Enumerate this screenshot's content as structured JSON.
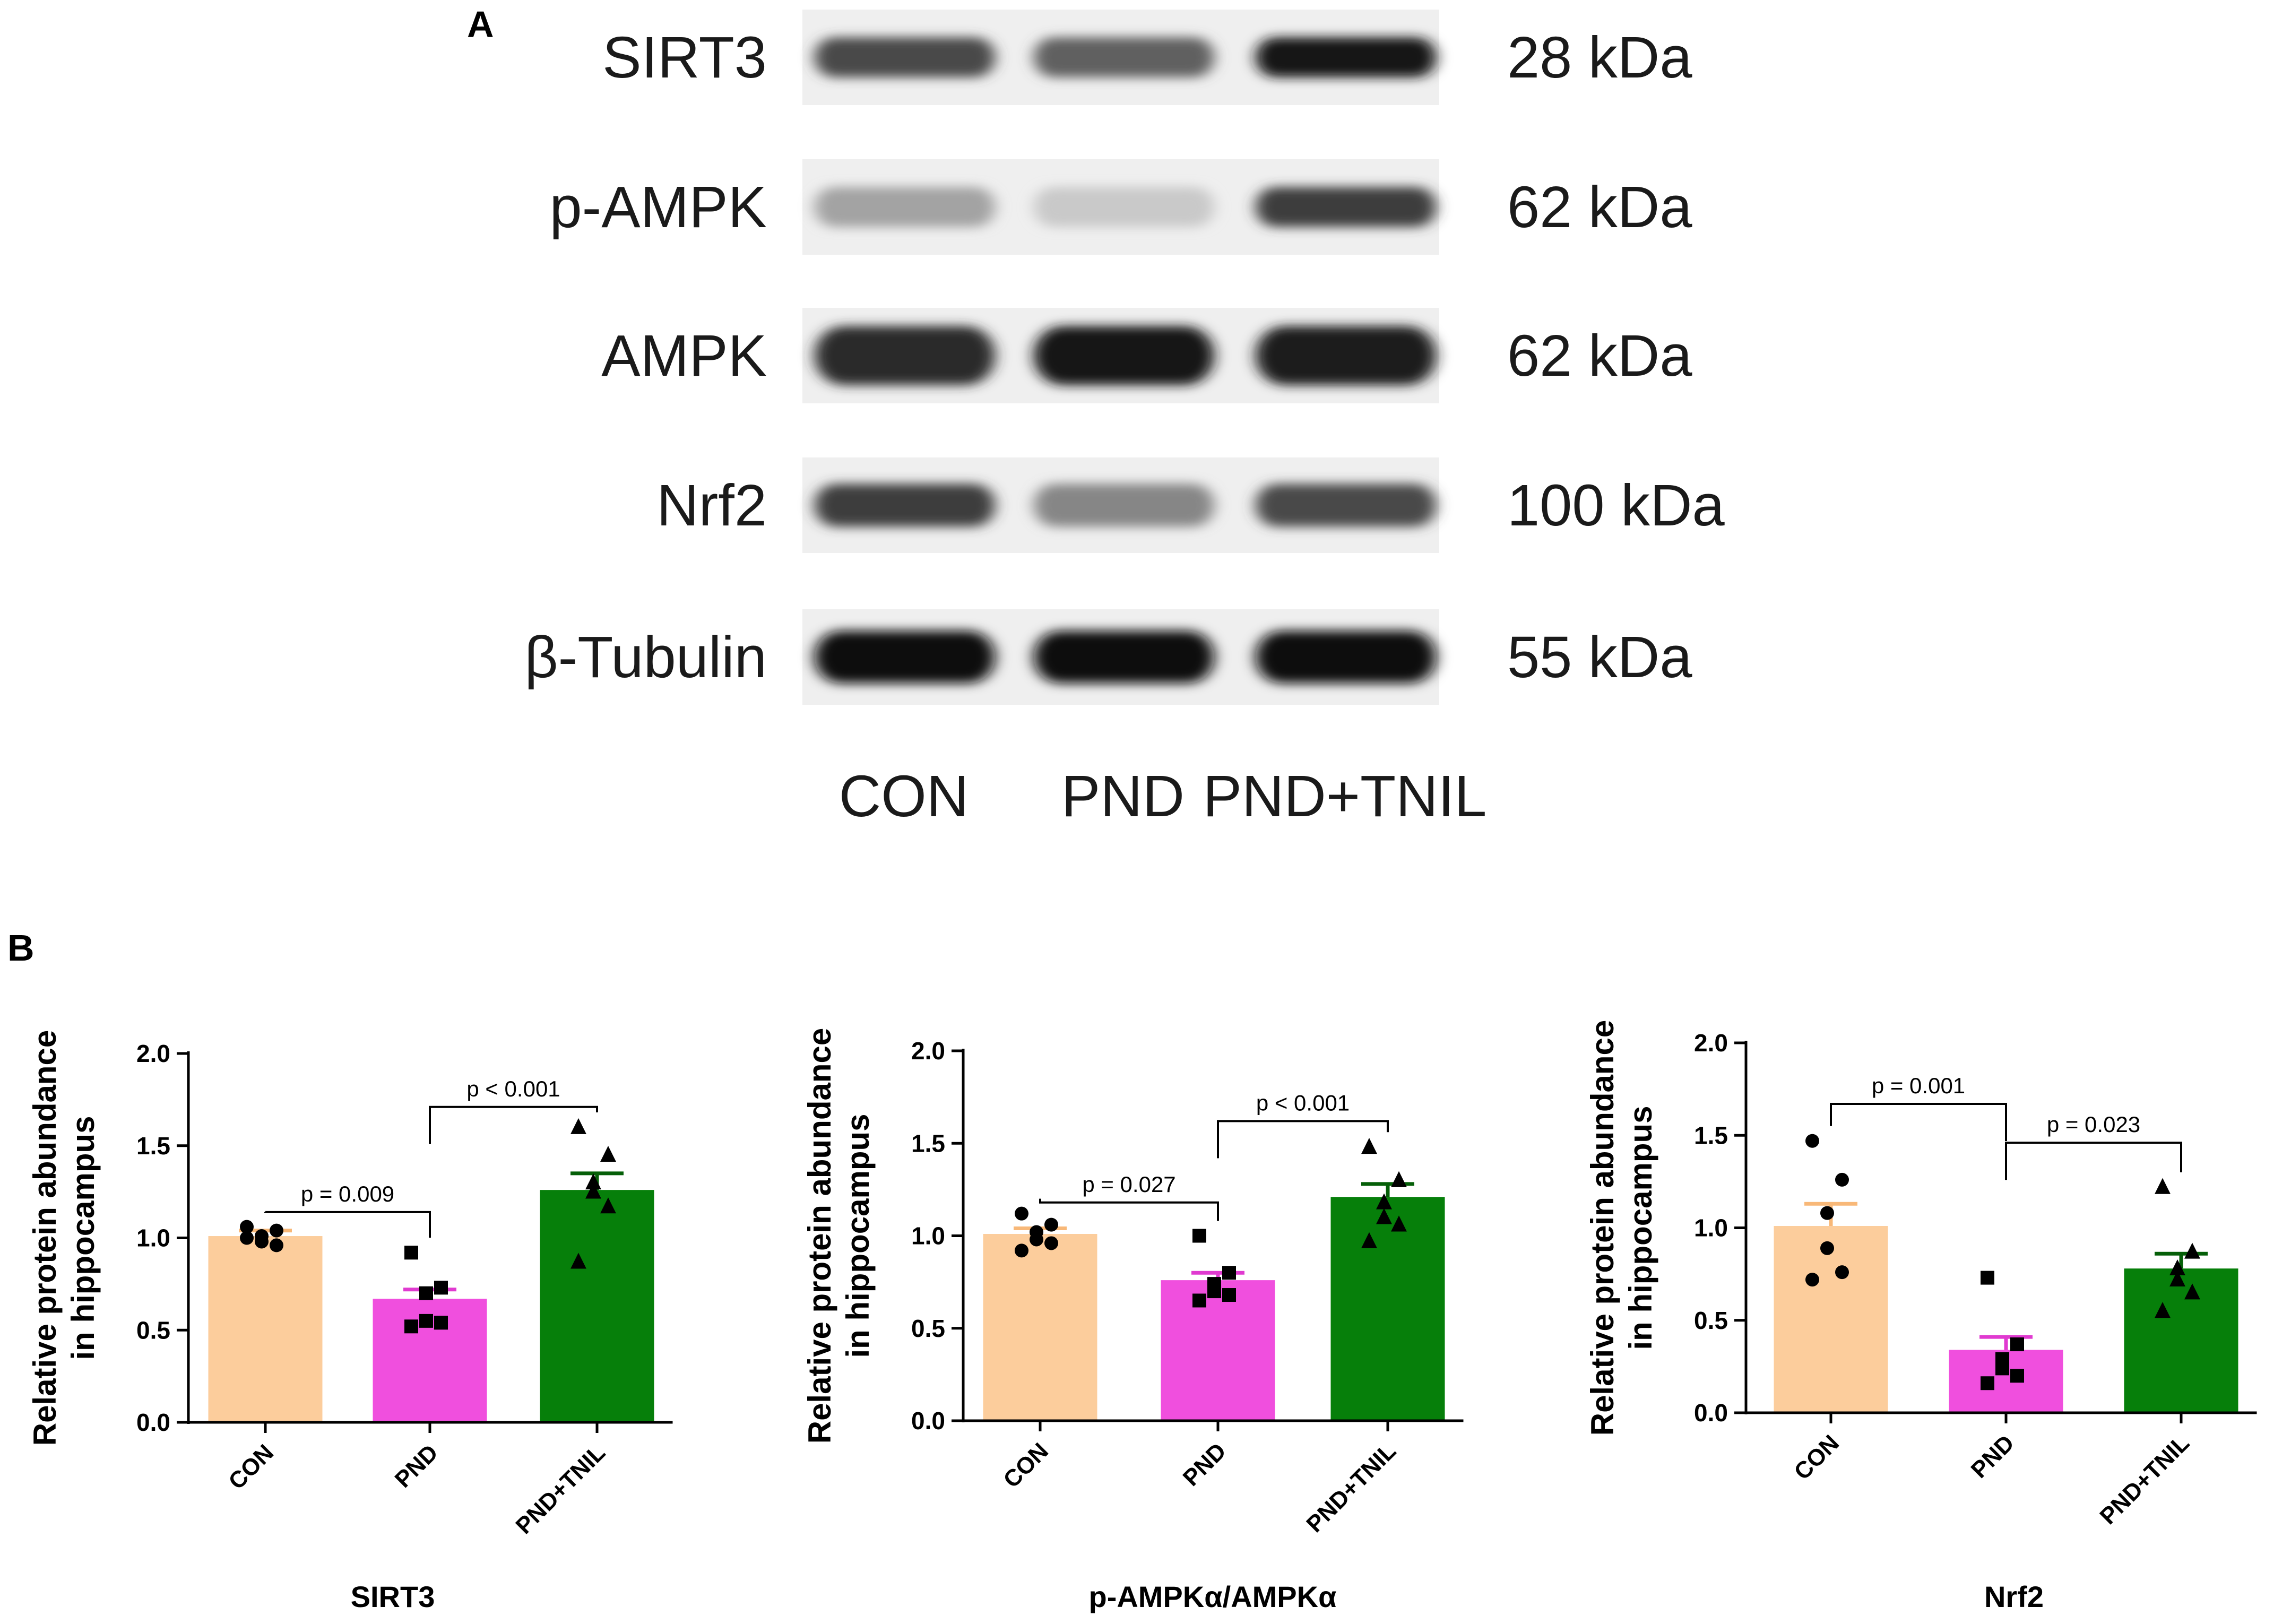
{
  "panels": {
    "a_label": "A",
    "b_label": "B"
  },
  "blot": {
    "rows": [
      {
        "protein": "SIRT3",
        "size": "28 kDa",
        "intensity": [
          0.72,
          0.62,
          0.95
        ],
        "band_height": 0.42
      },
      {
        "protein": "p-AMPK",
        "size": "62 kDa",
        "intensity": [
          0.32,
          0.15,
          0.78
        ],
        "band_height": 0.42
      },
      {
        "protein": "AMPK",
        "size": "62 kDa",
        "intensity": [
          0.85,
          0.95,
          0.92
        ],
        "band_height": 0.62
      },
      {
        "protein": "Nrf2",
        "size": "100 kDa",
        "intensity": [
          0.78,
          0.45,
          0.72
        ],
        "band_height": 0.45
      },
      {
        "protein": "β-Tubulin",
        "size": "55 kDa",
        "intensity": [
          0.97,
          0.97,
          0.97
        ],
        "band_height": 0.55
      }
    ],
    "lanes": [
      "CON",
      "PND",
      "PND+TNIL"
    ]
  },
  "colors": {
    "CON": "#fccd9c",
    "PND": "#f04fde",
    "PND+TNIL": "#067f0a",
    "CON_err": "#f8b878",
    "PND_err": "#e03ad0",
    "PND+TNIL_err": "#055f08"
  },
  "chart_data": [
    {
      "type": "bar",
      "title": "SIRT3",
      "ylabel": "Relative protein abundance in hippocampus",
      "ylabel_lines": [
        "Relative protein abundance",
        "in hippocampus"
      ],
      "categories": [
        "CON",
        "PND",
        "PND+TNIL"
      ],
      "values": [
        1.01,
        0.67,
        1.26
      ],
      "errors": [
        0.03,
        0.05,
        0.09
      ],
      "points": [
        [
          1.06,
          1.04,
          1.01,
          0.98,
          0.96,
          1.0
        ],
        [
          0.92,
          0.73,
          0.7,
          0.55,
          0.54,
          0.52
        ],
        [
          1.6,
          1.45,
          1.3,
          1.25,
          1.17,
          0.87
        ]
      ],
      "markers": [
        "circle",
        "square",
        "triangle"
      ],
      "ylim": [
        0,
        2.0
      ],
      "yticks": [
        "0.0",
        "0.5",
        "1.0",
        "1.5",
        "2.0"
      ],
      "comparisons": [
        {
          "from": 0,
          "to": 1,
          "label": "p = 0.009",
          "level": 1.14
        },
        {
          "from": 1,
          "to": 2,
          "label": "p < 0.001",
          "level": 1.71
        }
      ]
    },
    {
      "type": "bar",
      "title": "p-AMPKα/AMPKα",
      "ylabel": "Relative protein abundance in hippocampus",
      "ylabel_lines": [
        "Relative protein abundance",
        "in hippocampus"
      ],
      "categories": [
        "CON",
        "PND",
        "PND+TNIL"
      ],
      "values": [
        1.01,
        0.76,
        1.21
      ],
      "errors": [
        0.03,
        0.04,
        0.07
      ],
      "points": [
        [
          1.12,
          1.06,
          1.02,
          0.98,
          0.96,
          0.92
        ],
        [
          1.0,
          0.8,
          0.74,
          0.7,
          0.68,
          0.65
        ],
        [
          1.48,
          1.3,
          1.18,
          1.1,
          1.06,
          0.97
        ]
      ],
      "markers": [
        "circle",
        "square",
        "triangle"
      ],
      "ylim": [
        0,
        2.0
      ],
      "yticks": [
        "0.0",
        "0.5",
        "1.0",
        "1.5",
        "2.0"
      ],
      "comparisons": [
        {
          "from": 0,
          "to": 1,
          "label": "p = 0.027",
          "level": 1.18
        },
        {
          "from": 1,
          "to": 2,
          "label": "p < 0.001",
          "level": 1.62
        }
      ]
    },
    {
      "type": "bar",
      "title": "Nrf2",
      "ylabel": "Relative protein abundance in hippocampus",
      "ylabel_lines": [
        "Relative protein abundance",
        "in hippocampus"
      ],
      "categories": [
        "CON",
        "PND",
        "PND+TNIL"
      ],
      "values": [
        1.01,
        0.34,
        0.78
      ],
      "errors": [
        0.12,
        0.07,
        0.08
      ],
      "points": [
        [
          1.47,
          1.26,
          1.08,
          0.89,
          0.76,
          0.72
        ],
        [
          0.73,
          0.37,
          0.29,
          0.24,
          0.2,
          0.16
        ],
        [
          1.22,
          0.87,
          0.78,
          0.72,
          0.65,
          0.55
        ]
      ],
      "markers": [
        "circle",
        "square",
        "triangle"
      ],
      "ylim": [
        0,
        2.0
      ],
      "yticks": [
        "0.0",
        "0.5",
        "1.0",
        "1.5",
        "2.0"
      ],
      "comparisons": [
        {
          "from": 0,
          "to": 1,
          "label": "p = 0.001",
          "level": 1.67
        },
        {
          "from": 1,
          "to": 2,
          "label": "p = 0.023",
          "level": 1.46
        }
      ]
    }
  ]
}
